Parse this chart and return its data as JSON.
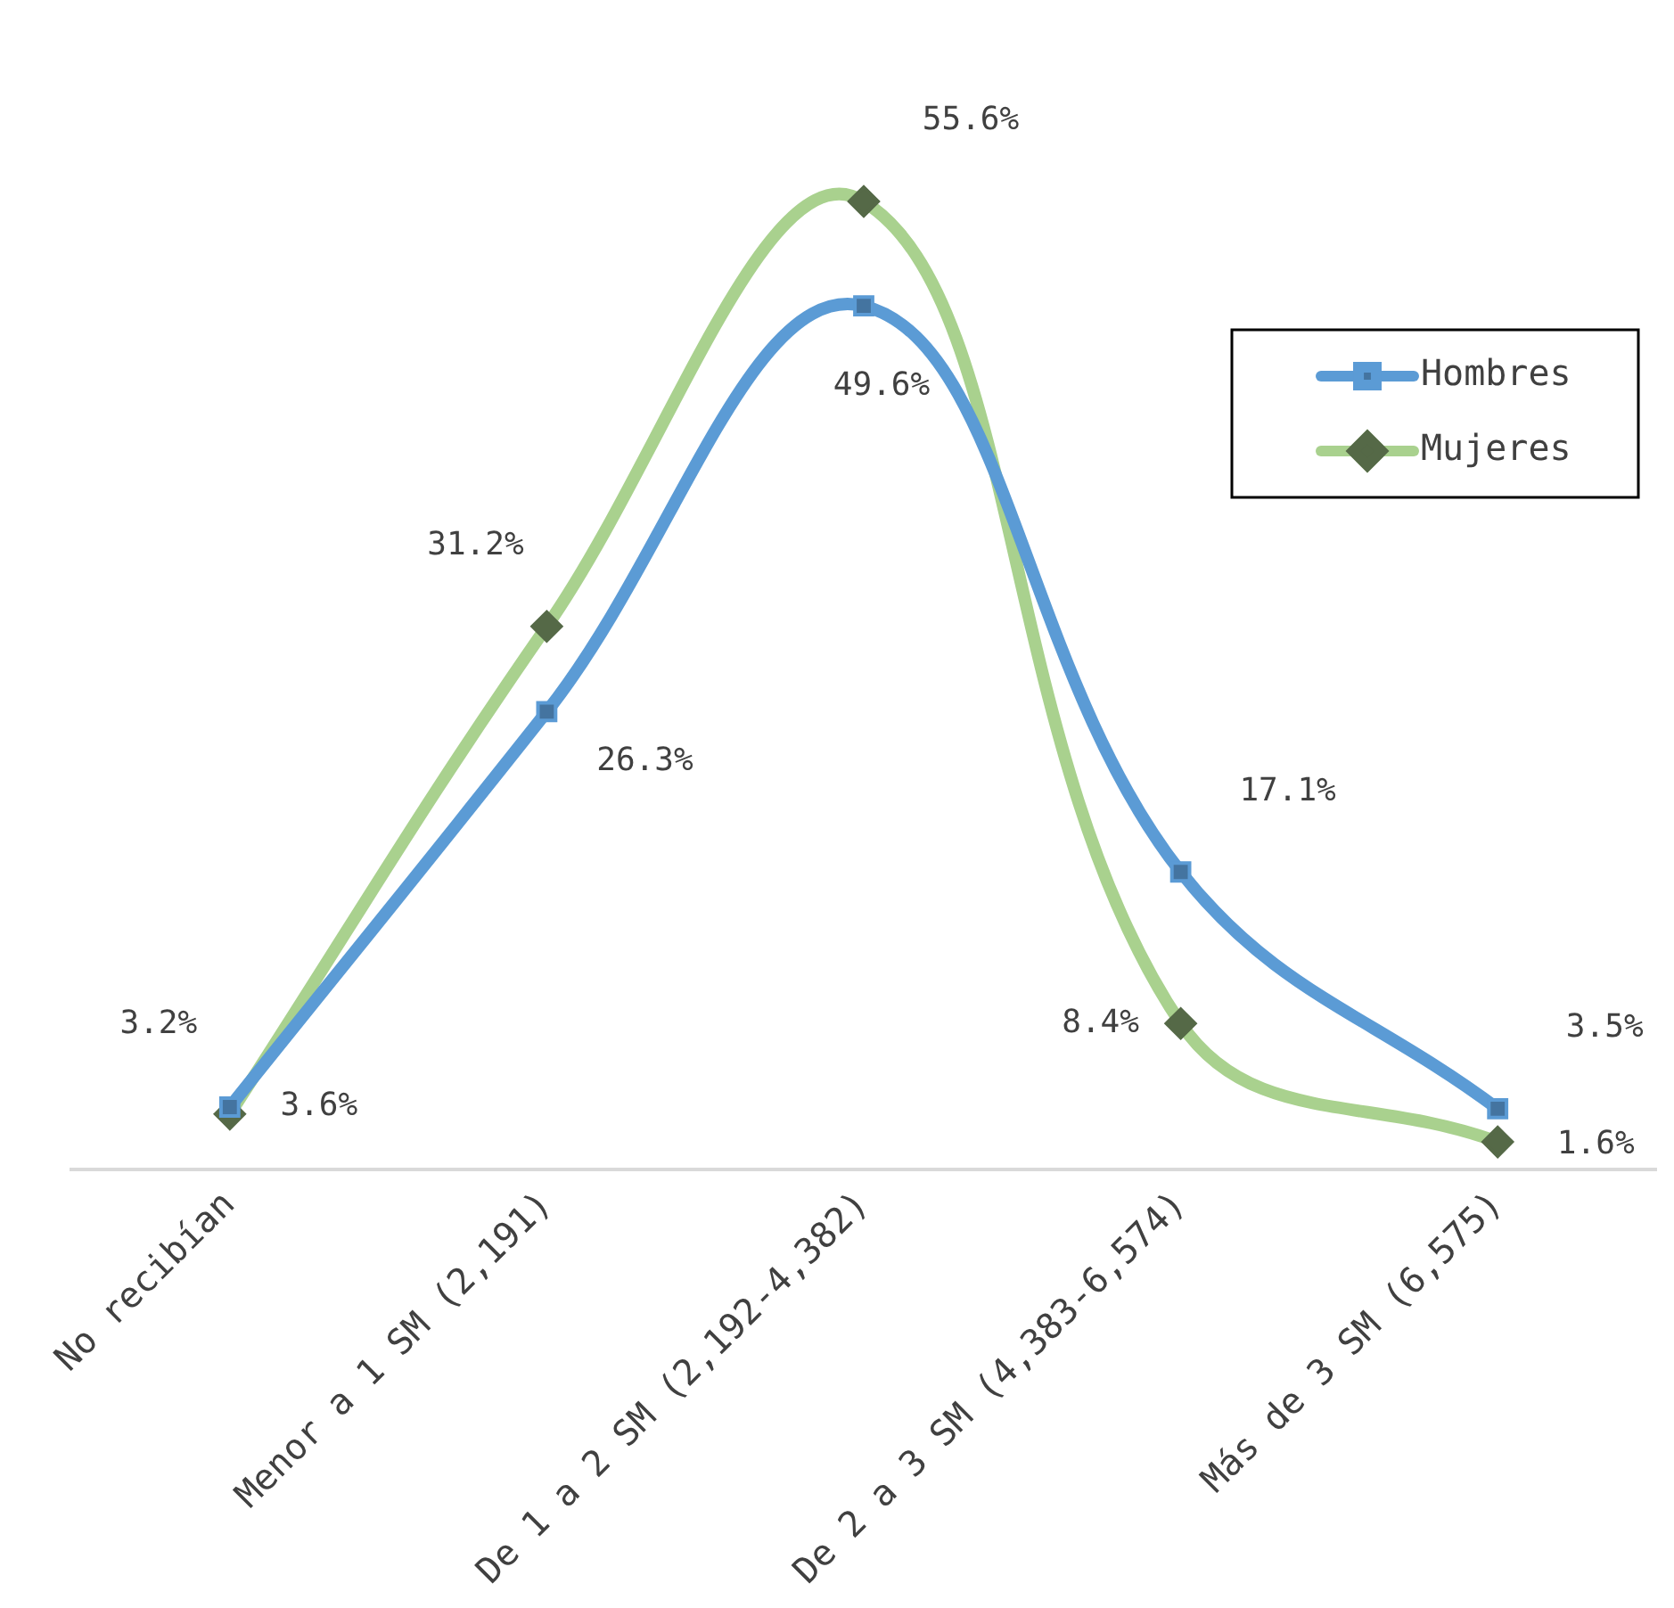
{
  "chart_data": {
    "type": "line",
    "categories": [
      "No recibían",
      "Menor a 1 SM (2,191)",
      "De 1 a 2 SM (2,192-4,382)",
      "De 2 a 3 SM (4,383-6,574)",
      "Más de 3 SM (6,575)"
    ],
    "series": [
      {
        "name": "Hombres",
        "color": "#5b9bd5",
        "marker": "square",
        "values": [
          3.6,
          26.3,
          49.6,
          17.1,
          3.5
        ],
        "value_labels": [
          "3.6%",
          "26.3%",
          "49.6%",
          "17.1%",
          "3.5%"
        ]
      },
      {
        "name": "Mujeres",
        "color": "#a9d18e",
        "marker": "diamond",
        "values": [
          3.2,
          31.2,
          55.6,
          8.4,
          1.6
        ],
        "value_labels": [
          "3.2%",
          "31.2%",
          "55.6%",
          "8.4%",
          "1.6%"
        ]
      }
    ],
    "tick_labels": "x",
    "grid": false,
    "legend": "top right"
  }
}
